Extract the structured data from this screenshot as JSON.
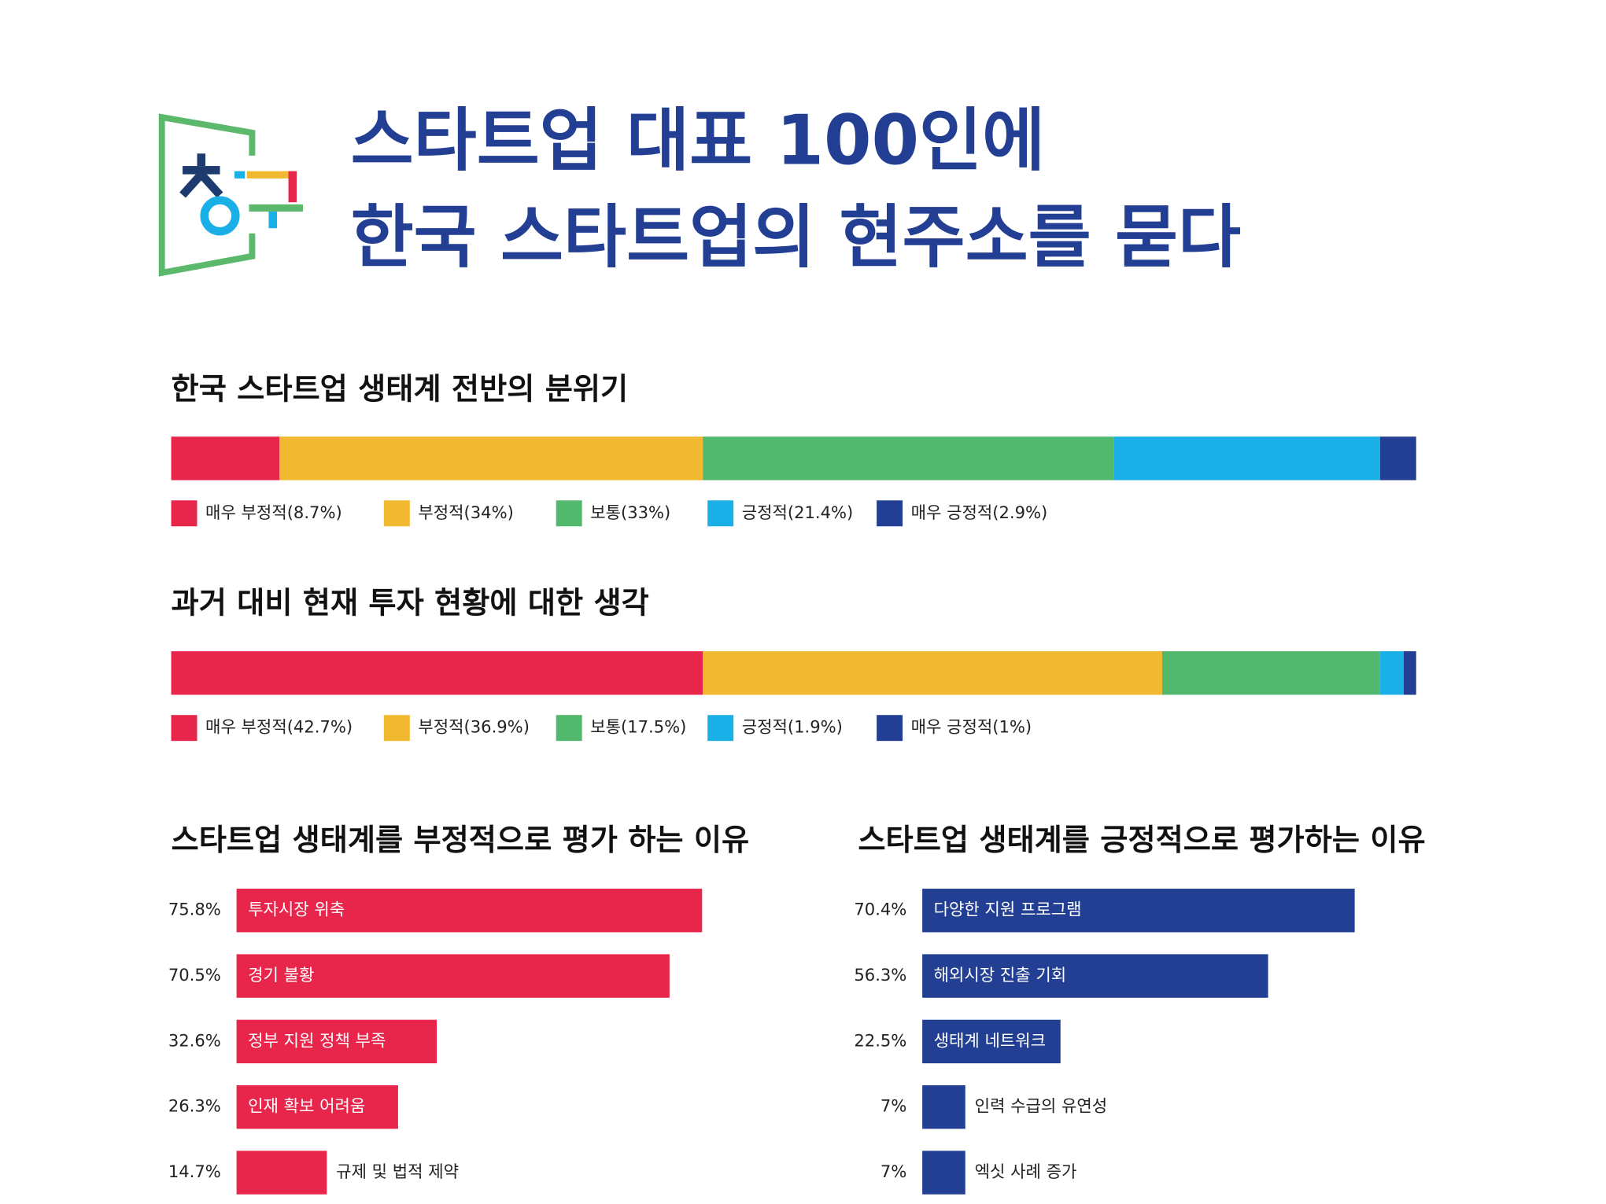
{
  "header": {
    "title_lines": [
      "스타트업 대표 100인에",
      "한국 스타트업의 현주소를 묻다"
    ]
  },
  "chart_data": [
    {
      "type": "stacked_bar",
      "title": "한국 스타트업 생태계 전반의 분위기",
      "xlim": [
        0,
        100
      ],
      "series": [
        {
          "name": "매우 부정적(8.7%)",
          "color": "#e8254a",
          "values": [
            8.7
          ]
        },
        {
          "name": "부정적(34%)",
          "color": "#f0b930",
          "values": [
            34
          ]
        },
        {
          "name": "보통(33%)",
          "color": "#52b86e",
          "values": [
            33
          ]
        },
        {
          "name": "긍정적(21.4%)",
          "color": "#1aafe6",
          "values": [
            21.4
          ]
        },
        {
          "name": "매우 긍정적(2.9%)",
          "color": "#223f93",
          "values": [
            2.9
          ]
        }
      ]
    },
    {
      "type": "stacked_bar",
      "title": "과거 대비 현재 투자 현황에 대한 생각",
      "xlim": [
        0,
        100
      ],
      "series": [
        {
          "name": "매우 부정적(42.7%)",
          "color": "#e8254a",
          "values": [
            42.7
          ]
        },
        {
          "name": "부정적(36.9%)",
          "color": "#f0b930",
          "values": [
            36.9
          ]
        },
        {
          "name": "보통(17.5%)",
          "color": "#52b86e",
          "values": [
            17.5
          ]
        },
        {
          "name": "긍정적(1.9%)",
          "color": "#1aafe6",
          "values": [
            1.9
          ]
        },
        {
          "name": "매우 긍정적(1%)",
          "color": "#223f93",
          "values": [
            1
          ]
        }
      ]
    },
    {
      "type": "hbar",
      "title": "스타트업 생태계를 부정적으로 평가 하는 이유",
      "color": "#e8254a",
      "xlim": [
        0,
        100
      ],
      "categories": [
        "투자시장 위축",
        "경기 불황",
        "정부 지원 정책 부족",
        "인재 확보 어려움",
        "규제 및 법적 제약"
      ],
      "values": [
        75.8,
        70.5,
        32.6,
        26.3,
        14.7
      ],
      "value_labels": [
        "75.8%",
        "70.5%",
        "32.6%",
        "26.3%",
        "14.7%"
      ]
    },
    {
      "type": "hbar",
      "title": "스타트업 생태계를 긍정적으로 평가하는 이유",
      "color": "#223f93",
      "xlim": [
        0,
        100
      ],
      "categories": [
        "다양한 지원 프로그램",
        "해외시장 진출 기회",
        "생태계 네트워크",
        "인력 수급의 유연성",
        "엑싯 사례 증가"
      ],
      "values": [
        70.4,
        56.3,
        22.5,
        7,
        7
      ],
      "value_labels": [
        "70.4%",
        "56.3%",
        "22.5%",
        "7%",
        "7%"
      ]
    }
  ]
}
